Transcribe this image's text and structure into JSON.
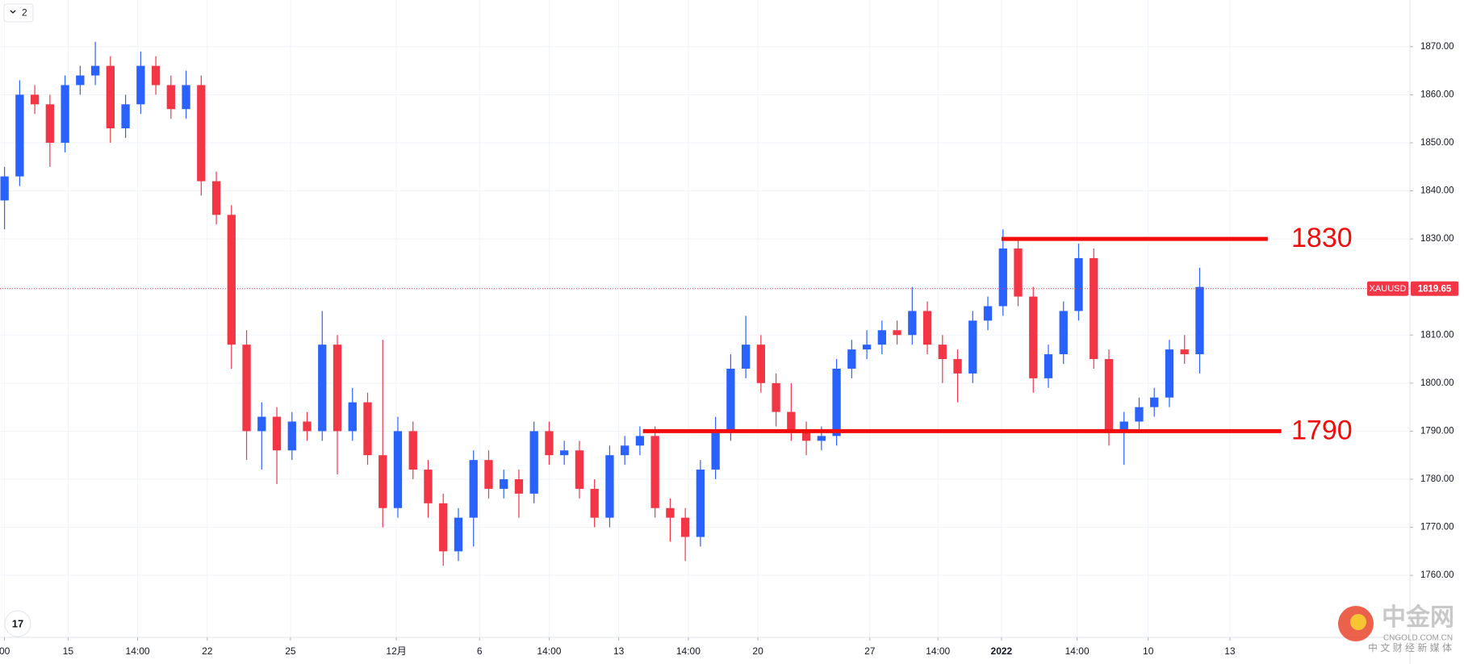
{
  "chart_data": {
    "type": "candlestick",
    "badge": "2",
    "symbol": "XAUUSD",
    "last_price": 1819.65,
    "levels": [
      1830,
      1790
    ],
    "watermark": {
      "title": "中金网",
      "domain": "CNGOLD.COM.CN",
      "slogan": "中 文 财 经 新 媒 体"
    },
    "up_color": "#2962ff",
    "down_color": "#f23645",
    "level_color": "#f20d0d",
    "grid": true,
    "ylim": [
      1747.1,
      1879.7
    ],
    "yticks": [
      {
        "value": 1760,
        "label": "1760.00"
      },
      {
        "value": 1770,
        "label": "1770.00"
      },
      {
        "value": 1780,
        "label": "1780.00"
      },
      {
        "value": 1790,
        "label": "1790.00"
      },
      {
        "value": 1800,
        "label": "1800.00"
      },
      {
        "value": 1810,
        "label": "1810.00"
      },
      {
        "value": 1820,
        "label": "1820.00"
      },
      {
        "value": 1830,
        "label": "1830.00"
      },
      {
        "value": 1840,
        "label": "1840.00"
      },
      {
        "value": 1850,
        "label": "1850.00"
      },
      {
        "value": 1860,
        "label": "1860.00"
      },
      {
        "value": 1870,
        "label": "1870.00"
      }
    ],
    "xlim": [
      -0.3,
      92.9
    ],
    "xticks": [
      {
        "value": 0,
        "label": "00"
      },
      {
        "value": 4.2,
        "label": "15"
      },
      {
        "value": 8.8,
        "label": "14:00"
      },
      {
        "value": 13.4,
        "label": "22"
      },
      {
        "value": 18.9,
        "label": "25"
      },
      {
        "value": 25.9,
        "label": "12月"
      },
      {
        "value": 31.4,
        "label": "6"
      },
      {
        "value": 36.0,
        "label": "14:00"
      },
      {
        "value": 40.6,
        "label": "13"
      },
      {
        "value": 45.2,
        "label": "14:00"
      },
      {
        "value": 49.8,
        "label": "20"
      },
      {
        "value": 57.2,
        "label": "27"
      },
      {
        "value": 61.7,
        "label": "14:00"
      },
      {
        "value": 65.9,
        "label": "2022"
      },
      {
        "value": 70.9,
        "label": "14:00"
      },
      {
        "value": 75.6,
        "label": "10"
      },
      {
        "value": 81.0,
        "label": "13"
      }
    ],
    "open": [
      1838,
      1843,
      1860,
      1858,
      1850,
      1862,
      1864,
      1866,
      1853,
      1858,
      1866,
      1862,
      1857,
      1862,
      1842,
      1835,
      1808,
      1790,
      1793,
      1786,
      1792,
      1790,
      1808,
      1790,
      1796,
      1785,
      1774,
      1790,
      1782,
      1775,
      1765,
      1772,
      1784,
      1778,
      1780,
      1777,
      1790,
      1785,
      1786,
      1778,
      1772,
      1785,
      1787,
      1789,
      1774,
      1772,
      1768,
      1782,
      1790,
      1803,
      1808,
      1800,
      1794,
      1790,
      1788,
      1789,
      1803,
      1807,
      1808,
      1811,
      1810,
      1815,
      1808,
      1805,
      1802,
      1813,
      1816,
      1828,
      1818,
      1801,
      1806,
      1815,
      1826,
      1805,
      1790,
      1792,
      1795,
      1797,
      1807,
      1806
    ],
    "high": [
      1845,
      1863,
      1862,
      1860,
      1864,
      1866,
      1871,
      1868,
      1860,
      1869,
      1868,
      1864,
      1865,
      1864,
      1844,
      1837,
      1811,
      1796,
      1795,
      1794,
      1794,
      1815,
      1810,
      1799,
      1798,
      1809,
      1793,
      1792,
      1784,
      1777,
      1774,
      1786,
      1786,
      1782,
      1782,
      1792,
      1792,
      1788,
      1788,
      1780,
      1787,
      1789,
      1791,
      1791,
      1776,
      1774,
      1784,
      1793,
      1806,
      1814,
      1810,
      1802,
      1800,
      1792,
      1791,
      1805,
      1809,
      1811,
      1813,
      1813,
      1820,
      1817,
      1810,
      1807,
      1815,
      1818,
      1832,
      1830,
      1820,
      1808,
      1817,
      1829,
      1828,
      1807,
      1794,
      1797,
      1799,
      1809,
      1810,
      1824
    ],
    "low": [
      1832,
      1841,
      1856,
      1845,
      1848,
      1860,
      1862,
      1850,
      1851,
      1856,
      1860,
      1855,
      1855,
      1839,
      1833,
      1803,
      1784,
      1782,
      1779,
      1784,
      1788,
      1788,
      1781,
      1788,
      1783,
      1770,
      1772,
      1780,
      1772,
      1762,
      1763,
      1766,
      1776,
      1776,
      1772,
      1775,
      1783,
      1783,
      1776,
      1770,
      1770,
      1783,
      1785,
      1772,
      1767,
      1763,
      1766,
      1780,
      1788,
      1801,
      1798,
      1791,
      1788,
      1785,
      1786,
      1787,
      1801,
      1805,
      1806,
      1808,
      1808,
      1806,
      1800,
      1796,
      1800,
      1811,
      1814,
      1816,
      1798,
      1799,
      1804,
      1813,
      1803,
      1787,
      1783,
      1790,
      1793,
      1795,
      1804,
      1802
    ],
    "close": [
      1843,
      1860,
      1858,
      1850,
      1862,
      1864,
      1866,
      1853,
      1858,
      1866,
      1862,
      1857,
      1862,
      1842,
      1835,
      1808,
      1790,
      1793,
      1786,
      1792,
      1790,
      1808,
      1790,
      1796,
      1785,
      1774,
      1790,
      1782,
      1775,
      1765,
      1772,
      1784,
      1778,
      1780,
      1777,
      1790,
      1785,
      1786,
      1778,
      1772,
      1785,
      1787,
      1789,
      1774,
      1772,
      1768,
      1782,
      1790,
      1803,
      1808,
      1800,
      1794,
      1790,
      1788,
      1789,
      1803,
      1807,
      1808,
      1811,
      1810,
      1815,
      1808,
      1805,
      1802,
      1813,
      1816,
      1828,
      1818,
      1801,
      1806,
      1815,
      1826,
      1805,
      1790,
      1792,
      1795,
      1797,
      1807,
      1806,
      1820
    ]
  }
}
